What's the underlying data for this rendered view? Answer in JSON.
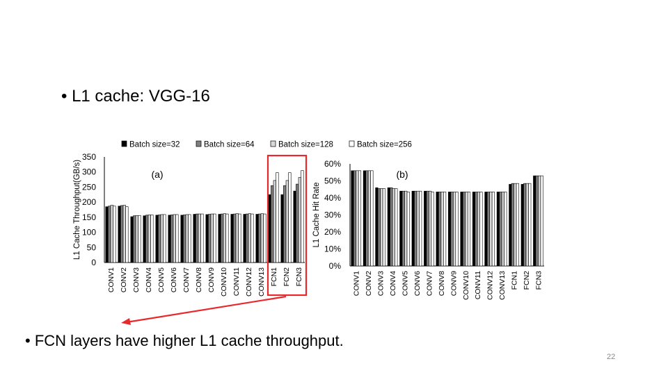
{
  "slide": {
    "title": "• L1 cache: VGG-16",
    "bullet": "• FCN layers have higher L1 cache throughput.",
    "page_number": "22"
  },
  "legend": {
    "entries": [
      "Batch size=32",
      "Batch size=64",
      "Batch size=128",
      "Batch size=256"
    ],
    "colors": [
      "#000000",
      "#7f7f7f",
      "#d9d9d9",
      "#ffffff"
    ]
  },
  "highlight": {
    "color": "#e8282b",
    "target_categories": [
      "FCN1",
      "FCN2",
      "FCN3"
    ]
  },
  "chart_data": [
    {
      "type": "bar",
      "panel_label": "(a)",
      "ylabel": "L1 Cache Throughput(GB/s)",
      "ylim": [
        0,
        350
      ],
      "yticks": [
        "0",
        "50",
        "100",
        "150",
        "200",
        "250",
        "300",
        "350"
      ],
      "categories": [
        "CONV1",
        "CONV2",
        "CONV3",
        "CONV4",
        "CONV5",
        "CONV6",
        "CONV7",
        "CONV8",
        "CONV9",
        "CONV10",
        "CONV11",
        "CONV12",
        "CONV13",
        "FCN1",
        "FCN2",
        "FCN3"
      ],
      "series": [
        {
          "name": "Batch size=32",
          "values": [
            185,
            187,
            152,
            155,
            157,
            157,
            157,
            160,
            159,
            160,
            160,
            160,
            160,
            225,
            225,
            237
          ]
        },
        {
          "name": "Batch size=64",
          "values": [
            187,
            189,
            155,
            157,
            158,
            158,
            158,
            161,
            160,
            161,
            161,
            161,
            161,
            255,
            255,
            260
          ]
        },
        {
          "name": "Batch size=128",
          "values": [
            190,
            190,
            156,
            158,
            159,
            159,
            159,
            161,
            161,
            162,
            162,
            162,
            162,
            272,
            272,
            282
          ]
        },
        {
          "name": "Batch size=256",
          "values": [
            187,
            185,
            156,
            158,
            159,
            159,
            159,
            161,
            161,
            161,
            161,
            161,
            161,
            298,
            298,
            305
          ]
        }
      ],
      "grid": false,
      "legend_position": "top"
    },
    {
      "type": "bar",
      "panel_label": "(b)",
      "ylabel": "L1 Cache Hit Rate",
      "ylim": [
        0,
        60
      ],
      "unit": "%",
      "yticks": [
        "0%",
        "10%",
        "20%",
        "30%",
        "40%",
        "50%",
        "60%"
      ],
      "categories": [
        "CONV1",
        "CONV2",
        "CONV3",
        "CONV4",
        "CONV5",
        "CONV6",
        "CONV7",
        "CONV8",
        "CONV9",
        "CONV10",
        "CONV11",
        "CONV12",
        "CONV13",
        "FCN1",
        "FCN2",
        "FCN3"
      ],
      "series": [
        {
          "name": "Batch size=32",
          "values": [
            56,
            56,
            46,
            46,
            44,
            44,
            44,
            43.5,
            43.5,
            43.5,
            43.5,
            43.5,
            43.5,
            48,
            48,
            53
          ]
        },
        {
          "name": "Batch size=64",
          "values": [
            56,
            56,
            45.5,
            46,
            44,
            44,
            44,
            43.5,
            43.5,
            43.5,
            43.5,
            43.5,
            43.5,
            48.5,
            48.5,
            53
          ]
        },
        {
          "name": "Batch size=128",
          "values": [
            56,
            56,
            45.5,
            45.5,
            44,
            44,
            44,
            43.5,
            43.5,
            43.5,
            43.5,
            43.5,
            43.5,
            48.5,
            48.5,
            53
          ]
        },
        {
          "name": "Batch size=256",
          "values": [
            56,
            56,
            45.5,
            45.5,
            43.5,
            44,
            43.5,
            43.5,
            43.5,
            43.5,
            43.5,
            43.5,
            43.5,
            48.5,
            48.5,
            53
          ]
        }
      ],
      "grid": false,
      "legend_position": "top"
    }
  ]
}
